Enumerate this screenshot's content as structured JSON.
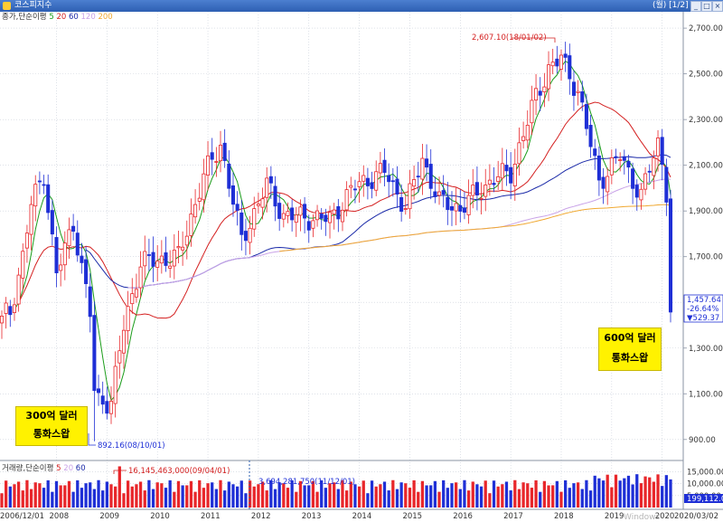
{
  "window": {
    "title": "코스피지수",
    "page_indicator": "(월) [1/2]",
    "minimize": "_",
    "restore": "□",
    "close": "×"
  },
  "price_panel": {
    "legend_prefix": "종가,단순이평",
    "ma_labels": [
      {
        "label": "5",
        "color": "#1a9c1a"
      },
      {
        "label": "20",
        "color": "#d42020"
      },
      {
        "label": "60",
        "color": "#1b2aa8"
      },
      {
        "label": "120",
        "color": "#c9a3e8"
      },
      {
        "label": "200",
        "color": "#f0a830"
      }
    ]
  },
  "volume_panel": {
    "legend_prefix": "거래량,단순이평",
    "ma_labels": [
      {
        "label": "5",
        "color": "#d42020"
      },
      {
        "label": "20",
        "color": "#c9a3e8"
      },
      {
        "label": "60",
        "color": "#1b2aa8"
      }
    ]
  },
  "annotations": {
    "high": "2,607.10(18/01/02)",
    "low": "892.16(08/10/01)",
    "vol_high": "16,145,463,000(09/04/01)",
    "vol_low": "3,694,281,750(11/12/01)",
    "last_price": "1,457.64",
    "last_change_pct": "-26.64%",
    "last_change": "▼529.37"
  },
  "callouts": {
    "left": {
      "line1": "300억 달러",
      "line2": "통화스왑"
    },
    "right": {
      "line1": "600억 달러",
      "line2": "통화스왑"
    }
  },
  "watermark": "Windows",
  "colors": {
    "up": "#e8262a",
    "down": "#1e2fd6",
    "grid": "#c9cfd9"
  },
  "chart_data": {
    "type": "candlestick",
    "title": "코스피지수",
    "interval": "monthly",
    "y_axis": {
      "ticks": [
        "900.00",
        "1,100.00",
        "1,300.00",
        "1,500.00",
        "1,700.00",
        "1,900.00",
        "2,100.00",
        "2,300.00",
        "2,500.00",
        "2,700.00"
      ],
      "tick_values": [
        900,
        1100,
        1300,
        1500,
        1700,
        1900,
        2100,
        2300,
        2500,
        2700
      ],
      "range": [
        820,
        2740
      ]
    },
    "volume_axis": {
      "ticks": [
        "15,000.00",
        "10,000.00",
        "5,000.00"
      ],
      "tick_values": [
        15000,
        10000,
        5000
      ],
      "last_value": "199,112.0",
      "range": [
        0,
        19000
      ]
    },
    "x_axis": {
      "labels": [
        "2006/12/01",
        "2008",
        "2009",
        "2010",
        "2011",
        "2012",
        "2013",
        "2014",
        "2015",
        "2016",
        "2017",
        "2018",
        "2019",
        "2020",
        "2020/03/02"
      ]
    },
    "series": [
      {
        "name": "종가",
        "kind": "ohlc",
        "anchors": [
          {
            "date": "2006-12",
            "close": 1440
          },
          {
            "date": "2007-02",
            "close": 1460
          },
          {
            "date": "2007-05",
            "close": 1700
          },
          {
            "date": "2007-07",
            "close": 1930
          },
          {
            "date": "2007-10",
            "close": 2064
          },
          {
            "date": "2008-01",
            "close": 1620
          },
          {
            "date": "2008-05",
            "close": 1850
          },
          {
            "date": "2008-09",
            "close": 1450
          },
          {
            "date": "2008-10",
            "close": 1113
          },
          {
            "date": "2008-11",
            "close": 1076
          },
          {
            "date": "2009-02",
            "close": 1063
          },
          {
            "date": "2009-05",
            "close": 1395
          },
          {
            "date": "2009-09",
            "close": 1673
          },
          {
            "date": "2010-06",
            "close": 1698
          },
          {
            "date": "2010-12",
            "close": 2051
          },
          {
            "date": "2011-04",
            "close": 2192
          },
          {
            "date": "2011-09",
            "close": 1770
          },
          {
            "date": "2012-03",
            "close": 2014
          },
          {
            "date": "2012-07",
            "close": 1880
          },
          {
            "date": "2013-06",
            "close": 1863
          },
          {
            "date": "2013-12",
            "close": 2011
          },
          {
            "date": "2014-07",
            "close": 2073
          },
          {
            "date": "2014-12",
            "close": 1916
          },
          {
            "date": "2015-04",
            "close": 2127
          },
          {
            "date": "2015-08",
            "close": 1941
          },
          {
            "date": "2016-01",
            "close": 1912
          },
          {
            "date": "2016-09",
            "close": 2043
          },
          {
            "date": "2017-01",
            "close": 2067
          },
          {
            "date": "2017-07",
            "close": 2402
          },
          {
            "date": "2017-10",
            "close": 2523
          },
          {
            "date": "2018-01",
            "close": 2566
          },
          {
            "date": "2018-05",
            "close": 2423
          },
          {
            "date": "2018-10",
            "close": 2029
          },
          {
            "date": "2019-03",
            "close": 2140
          },
          {
            "date": "2019-08",
            "close": 1967
          },
          {
            "date": "2019-12",
            "close": 2197
          },
          {
            "date": "2020-01",
            "close": 2119
          },
          {
            "date": "2020-02",
            "close": 1987
          },
          {
            "date": "2020-03",
            "close": 1457.64
          }
        ]
      },
      {
        "name": "5",
        "kind": "moving_average"
      },
      {
        "name": "20",
        "kind": "moving_average"
      },
      {
        "name": "60",
        "kind": "moving_average"
      },
      {
        "name": "120",
        "kind": "moving_average"
      },
      {
        "name": "200",
        "kind": "moving_average"
      },
      {
        "name": "거래량",
        "kind": "volume"
      }
    ],
    "high": {
      "value": 2607.1,
      "date": "18/01/02"
    },
    "low": {
      "value": 892.16,
      "date": "08/10/01"
    },
    "last": {
      "value": 1457.64,
      "change_pct": -26.64,
      "change": -529.37
    },
    "grid": true
  }
}
